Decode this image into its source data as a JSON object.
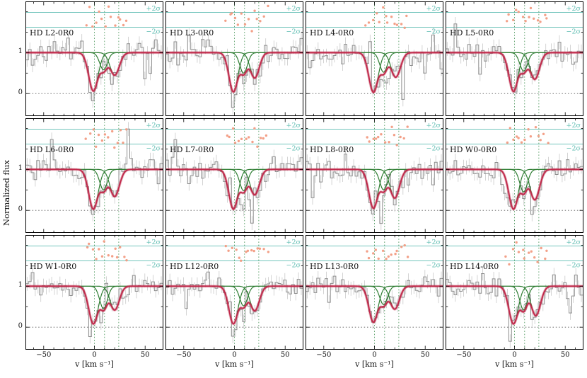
{
  "figure": {
    "ylabel": "Normalized flux",
    "xlabel": "v [km s⁻¹]",
    "x_ticks": [
      {
        "v": -50,
        "label": "−50"
      },
      {
        "v": 0,
        "label": "0"
      },
      {
        "v": 50,
        "label": "50"
      }
    ],
    "y_ticks": [
      {
        "v": 1,
        "label": "1"
      },
      {
        "v": 0,
        "label": "0"
      }
    ],
    "sigma_plus": "+2σ",
    "sigma_minus": "−2σ",
    "colors": {
      "spectrum": "#8d8d8d",
      "error_bar": "#c9c9c9",
      "component": "#2e7d32",
      "fit": "#c0294a",
      "residual_dot": "#f29b82",
      "sigma_line": "#5fbdb2",
      "vline": "#3f8f4f",
      "zero_line": "#555555",
      "frame": "#000000"
    }
  },
  "chart_data": {
    "type": "line",
    "description": "Grid of 12 normalized-flux spectra vs velocity with multi-component Gaussian absorption fits (green components, red total fit), observed histogram spectrum with error bars, and fit residuals plotted as dots between +2σ and −2σ reference lines.",
    "x_range": [
      -68,
      68
    ],
    "y_range": [
      -0.55,
      2.25
    ],
    "flux_levels": [
      0,
      1
    ],
    "sigma_levels": [
      1.98,
      1.62
    ],
    "component_velocity_markers": [
      0,
      10,
      24
    ],
    "panels": [
      {
        "label": "HD L2-0R0",
        "seed": 11,
        "components": [
          {
            "v": -1,
            "d": 0.94,
            "s": 4.6
          },
          {
            "v": 9,
            "d": 0.42,
            "s": 3.8
          },
          {
            "v": 20,
            "d": 0.55,
            "s": 4.6
          }
        ]
      },
      {
        "label": "HD L3-0R0",
        "seed": 22,
        "components": [
          {
            "v": -1,
            "d": 0.96,
            "s": 4.4
          },
          {
            "v": 9,
            "d": 0.5,
            "s": 3.8
          },
          {
            "v": 20,
            "d": 0.62,
            "s": 4.4
          }
        ]
      },
      {
        "label": "HD L4-0R0",
        "seed": 33,
        "components": [
          {
            "v": -1,
            "d": 0.97,
            "s": 4.6
          },
          {
            "v": 9,
            "d": 0.48,
            "s": 3.8
          },
          {
            "v": 21,
            "d": 0.6,
            "s": 4.6
          }
        ]
      },
      {
        "label": "HD L5-0R0",
        "seed": 44,
        "components": [
          {
            "v": -1,
            "d": 0.95,
            "s": 4.5
          },
          {
            "v": 9,
            "d": 0.45,
            "s": 3.8
          },
          {
            "v": 20,
            "d": 0.65,
            "s": 4.6
          }
        ]
      },
      {
        "label": "HD L6-0R0",
        "seed": 55,
        "components": [
          {
            "v": -1,
            "d": 0.97,
            "s": 4.6
          },
          {
            "v": 9,
            "d": 0.5,
            "s": 3.8
          },
          {
            "v": 20,
            "d": 0.66,
            "s": 4.6
          }
        ]
      },
      {
        "label": "HD L7-0R0",
        "seed": 66,
        "components": [
          {
            "v": -1,
            "d": 0.97,
            "s": 4.5
          },
          {
            "v": 9,
            "d": 0.52,
            "s": 3.8
          },
          {
            "v": 20,
            "d": 0.62,
            "s": 4.5
          }
        ]
      },
      {
        "label": "HD L8-0R0",
        "seed": 77,
        "components": [
          {
            "v": -1,
            "d": 0.95,
            "s": 4.5
          },
          {
            "v": 9,
            "d": 0.5,
            "s": 3.8
          },
          {
            "v": 20,
            "d": 0.7,
            "s": 4.6
          }
        ]
      },
      {
        "label": "HD W0-0R0",
        "seed": 88,
        "components": [
          {
            "v": -1,
            "d": 0.97,
            "s": 4.6
          },
          {
            "v": 9,
            "d": 0.55,
            "s": 3.8
          },
          {
            "v": 20,
            "d": 0.74,
            "s": 4.6
          }
        ]
      },
      {
        "label": "HD W1-0R0",
        "seed": 99,
        "components": [
          {
            "v": -1,
            "d": 0.92,
            "s": 4.6
          },
          {
            "v": 9,
            "d": 0.55,
            "s": 3.8
          },
          {
            "v": 20,
            "d": 0.58,
            "s": 4.5
          }
        ]
      },
      {
        "label": "HD L12-0R0",
        "seed": 111,
        "components": [
          {
            "v": -1,
            "d": 0.92,
            "s": 4.5
          },
          {
            "v": 9,
            "d": 0.48,
            "s": 3.8
          },
          {
            "v": 20,
            "d": 0.6,
            "s": 4.5
          }
        ]
      },
      {
        "label": "HD L13-0R0",
        "seed": 122,
        "components": [
          {
            "v": -1,
            "d": 0.88,
            "s": 4.5
          },
          {
            "v": 9,
            "d": 0.45,
            "s": 3.8
          },
          {
            "v": 20,
            "d": 0.56,
            "s": 4.5
          }
        ]
      },
      {
        "label": "HD L14-0R0",
        "seed": 133,
        "components": [
          {
            "v": -1,
            "d": 0.92,
            "s": 4.6
          },
          {
            "v": 9,
            "d": 0.58,
            "s": 3.8
          },
          {
            "v": 21,
            "d": 0.72,
            "s": 4.6
          }
        ]
      }
    ]
  }
}
